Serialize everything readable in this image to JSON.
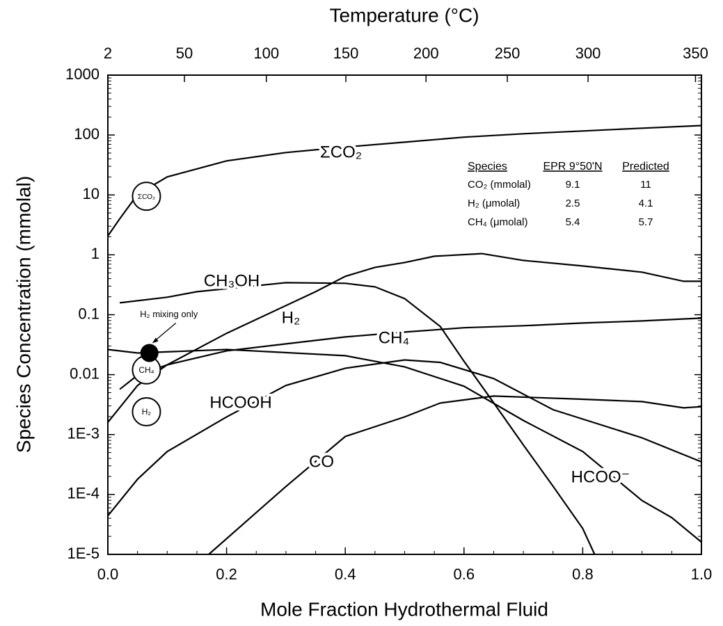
{
  "chart_data": {
    "type": "line",
    "xlabel": "Mole Fraction Hydrothermal Fluid",
    "ylabel": "Species Concentration (mmolal)",
    "log_y": true,
    "xlim": [
      0,
      1
    ],
    "ylim": [
      1e-05,
      1000
    ],
    "xticks": [
      {
        "value": 0,
        "label": "0.0"
      },
      0.2,
      0.4,
      0.6,
      0.8,
      {
        "value": 1,
        "label": "1.0"
      }
    ],
    "yticks": [
      {
        "value": 1e-05,
        "label": "1E-5"
      },
      {
        "value": 0.0001,
        "label": "1E-4"
      },
      {
        "value": 0.001,
        "label": "1E-3"
      },
      0.01,
      0.1,
      1,
      10,
      100,
      1000
    ],
    "x2": {
      "label": "Temperature (°C)",
      "ticks": [
        2,
        50,
        100,
        150,
        200,
        250,
        300,
        350
      ],
      "at_fraction": [
        0,
        0.129,
        0.267,
        0.401,
        0.536,
        0.673,
        0.809,
        0.99
      ]
    },
    "series": [
      {
        "name": "ΣCO₂",
        "color": "#000000",
        "x": [
          0,
          0.02,
          0.05,
          0.1,
          0.2,
          0.3,
          0.4,
          0.5,
          0.6,
          0.7,
          0.8,
          0.9,
          1.0
        ],
        "values": [
          2.06,
          4,
          10.2,
          20,
          37,
          51,
          63,
          76,
          92,
          105,
          117,
          130,
          144
        ]
      },
      {
        "name": "CH₃OH",
        "color": "#000000",
        "x": [
          0.02,
          0.1,
          0.15,
          0.3,
          0.4,
          0.45,
          0.5,
          0.56,
          0.6,
          0.65,
          0.7,
          0.75,
          0.8,
          0.82
        ],
        "values": [
          0.158,
          0.196,
          0.242,
          0.343,
          0.335,
          0.292,
          0.186,
          0.0636,
          0.0167,
          0.00338,
          0.00067,
          0.000137,
          2.7e-05,
          1e-05
        ]
      },
      {
        "name": "H₂",
        "color": "#000000",
        "x": [
          0,
          0.05,
          0.1,
          0.2,
          0.35,
          0.4,
          0.45,
          0.5,
          0.55,
          0.63,
          0.7,
          0.8,
          0.9,
          0.97,
          1.0
        ],
        "values": [
          0.0016,
          0.0066,
          0.0146,
          0.049,
          0.242,
          0.437,
          0.618,
          0.745,
          0.948,
          1.05,
          0.807,
          0.652,
          0.513,
          0.362,
          0.362
        ]
      },
      {
        "name": "CH₄",
        "color": "#000000",
        "x": [
          0.02,
          0.05,
          0.1,
          0.2,
          0.3,
          0.4,
          0.5,
          0.6,
          0.7,
          0.8,
          0.9,
          1.0
        ],
        "values": [
          0.0057,
          0.0098,
          0.0146,
          0.025,
          0.0326,
          0.0426,
          0.0514,
          0.0606,
          0.0655,
          0.0727,
          0.0788,
          0.0877
        ]
      },
      {
        "name": "HCOOH",
        "color": "#000000",
        "x": [
          0,
          0.05,
          0.1,
          0.2,
          0.3,
          0.4,
          0.5,
          0.56,
          0.65,
          0.75,
          0.9,
          1.0
        ],
        "values": [
          4.4e-05,
          0.00018,
          0.00052,
          0.00197,
          0.0066,
          0.0128,
          0.0176,
          0.016,
          0.0086,
          0.0026,
          0.00088,
          0.00035
        ]
      },
      {
        "name": "CO",
        "color": "#000000",
        "x": [
          0.17,
          0.3,
          0.4,
          0.5,
          0.56,
          0.65,
          0.8,
          0.9,
          0.97,
          1.0
        ],
        "values": [
          1e-05,
          0.000136,
          0.00093,
          0.00197,
          0.00336,
          0.00439,
          0.00388,
          0.00355,
          0.00279,
          0.00292
        ]
      },
      {
        "name": "HCOO⁻",
        "color": "#000000",
        "x": [
          0,
          0.05,
          0.2,
          0.4,
          0.5,
          0.6,
          0.7,
          0.8,
          0.9,
          0.95,
          1.0
        ],
        "values": [
          0.0263,
          0.023,
          0.0263,
          0.0207,
          0.0135,
          0.0064,
          0.00172,
          0.00052,
          7.9e-05,
          4.1e-05,
          1.6e-05
        ]
      }
    ],
    "observations": [
      {
        "label": "ΣCO₂",
        "x": 0.065,
        "value": 9.5
      },
      {
        "label": "CH₄",
        "x": 0.065,
        "value": 0.012
      },
      {
        "label": "H₂",
        "x": 0.065,
        "value": 0.0024
      }
    ],
    "mixing_point": {
      "label": "H₂ mixing only",
      "x": 0.07,
      "value": 0.023
    },
    "table": {
      "header": [
        "Species",
        "EPR 9°50'N",
        "Predicted"
      ],
      "rows": [
        [
          "CO₂ (mmolal)",
          "9.1",
          "11"
        ],
        [
          "H₂ (μmolal)",
          "2.5",
          "4.1"
        ],
        [
          "CH₄ (μmolal)",
          "5.4",
          "5.7"
        ]
      ]
    }
  }
}
